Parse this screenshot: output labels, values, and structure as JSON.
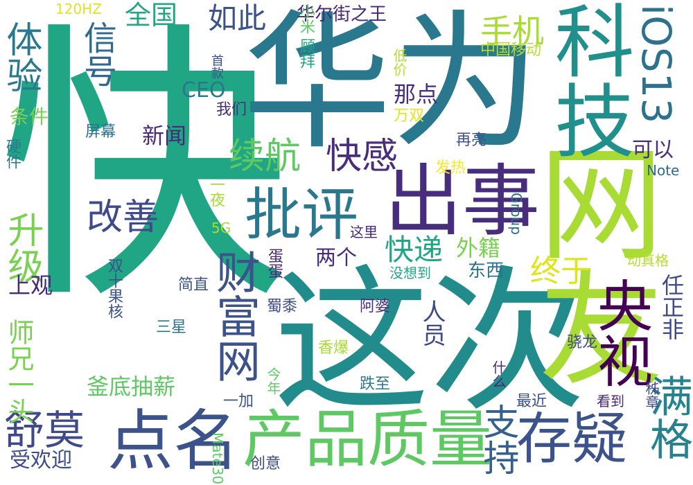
{
  "palette": {
    "yellow_green": "#a8db34",
    "green": "#5ec962",
    "teal_green": "#21a685",
    "teal": "#228c8d",
    "blue": "#3b528b",
    "deep_purple": "#472d7b",
    "yellow": "#e0e41a"
  },
  "words": [
    {
      "text": "快",
      "color": "#21a685"
    },
    {
      "text": "华为",
      "color": "#2a788e"
    },
    {
      "text": "这次",
      "color": "#228c8d"
    },
    {
      "text": "网友",
      "color": "#a8db34"
    },
    {
      "text": "科技",
      "color": "#21908d"
    },
    {
      "text": "出事",
      "color": "#472d7b"
    },
    {
      "text": "产品质量",
      "color": "#5ec962"
    },
    {
      "text": "点名",
      "color": "#3b528b"
    },
    {
      "text": "存疑",
      "color": "#3b528b"
    },
    {
      "text": "批评",
      "color": "#2a788e"
    },
    {
      "text": "央视",
      "color": "#440154"
    },
    {
      "text": "iOS13",
      "color": "#2c728e"
    },
    {
      "text": "财富网",
      "color": "#3b528b"
    },
    {
      "text": "舒莫",
      "color": "#3e4a89"
    },
    {
      "text": "满格",
      "color": "#26828e"
    },
    {
      "text": "支持",
      "color": "#355f8d"
    },
    {
      "text": "升级",
      "color": "#7ad151"
    },
    {
      "text": "体验",
      "color": "#2a788e"
    },
    {
      "text": "信号",
      "color": "#31688e"
    },
    {
      "text": "续航",
      "color": "#5ec962"
    },
    {
      "text": "快感",
      "color": "#472d7b"
    },
    {
      "text": "改善",
      "color": "#3e4a89"
    },
    {
      "text": "快递",
      "color": "#21a685"
    },
    {
      "text": "终于",
      "color": "#e0e41a"
    },
    {
      "text": "手机",
      "color": "#a8db34"
    },
    {
      "text": "如此",
      "color": "#3b528b"
    },
    {
      "text": "全国",
      "color": "#21a685"
    },
    {
      "text": "华尔街之王",
      "color": "#482878"
    },
    {
      "text": "那点",
      "color": "#472d7b"
    },
    {
      "text": "外籍",
      "color": "#7ad151"
    },
    {
      "text": "两个",
      "color": "#472d7b"
    },
    {
      "text": "师兄一头",
      "color": "#7ad151"
    },
    {
      "text": "上观",
      "color": "#482878"
    },
    {
      "text": "釜底抽薪",
      "color": "#5ec962"
    },
    {
      "text": "受欢迎",
      "color": "#3e4a89"
    },
    {
      "text": "人员",
      "color": "#3e4a89"
    },
    {
      "text": "任正非",
      "color": "#3e4a89"
    },
    {
      "text": "东西",
      "color": "#2c728e"
    },
    {
      "text": "新闻",
      "color": "#482878"
    },
    {
      "text": "可以",
      "color": "#472d7b"
    },
    {
      "text": "条件",
      "color": "#7ad151"
    },
    {
      "text": "120HZ",
      "color": "#e0e41a"
    },
    {
      "text": "CEO",
      "color": "#2a788e"
    },
    {
      "text": "首款",
      "color": "#3b528b"
    },
    {
      "text": "顾拜",
      "color": "#21a685"
    },
    {
      "text": "小米",
      "color": "#5ec962"
    },
    {
      "text": "低价",
      "color": "#b5de2b"
    },
    {
      "text": "中国移动",
      "color": "#b5de2b"
    },
    {
      "text": "我们",
      "color": "#472d7b"
    },
    {
      "text": "屏幕",
      "color": "#2c728e"
    },
    {
      "text": "万双",
      "color": "#e0e41a"
    },
    {
      "text": "再亮",
      "color": "#3b528b"
    },
    {
      "text": "Note",
      "color": "#31688e"
    },
    {
      "text": "发热",
      "color": "#fde725"
    },
    {
      "text": "一夜",
      "color": "#a8db34"
    },
    {
      "text": "5G",
      "color": "#a8db34"
    },
    {
      "text": "Group",
      "color": "#2c728e"
    },
    {
      "text": "这里",
      "color": "#482878"
    },
    {
      "text": "动真格",
      "color": "#b5de2b"
    },
    {
      "text": "硬件",
      "color": "#2a788e"
    },
    {
      "text": "双十果核",
      "color": "#3b528b"
    },
    {
      "text": "简直",
      "color": "#3b528b"
    },
    {
      "text": "蛋蛋",
      "color": "#482878"
    },
    {
      "text": "没想到",
      "color": "#21a685"
    },
    {
      "text": "三星",
      "color": "#2c728e"
    },
    {
      "text": "蜀黍",
      "color": "#3e4a89"
    },
    {
      "text": "阿婆",
      "color": "#472d7b"
    },
    {
      "text": "骁龙",
      "color": "#3e4a89"
    },
    {
      "text": "香爆",
      "color": "#a8db34"
    },
    {
      "text": "什么",
      "color": "#482878"
    },
    {
      "text": "今年",
      "color": "#5ec962"
    },
    {
      "text": "跌至",
      "color": "#2a788e"
    },
    {
      "text": "秭章",
      "color": "#3e4a89"
    },
    {
      "text": "最近",
      "color": "#3b528b"
    },
    {
      "text": "一加",
      "color": "#3b528b"
    },
    {
      "text": "看到",
      "color": "#482878"
    },
    {
      "text": "Mate30",
      "color": "#5ec962"
    },
    {
      "text": "创意",
      "color": "#3e4a89"
    }
  ]
}
